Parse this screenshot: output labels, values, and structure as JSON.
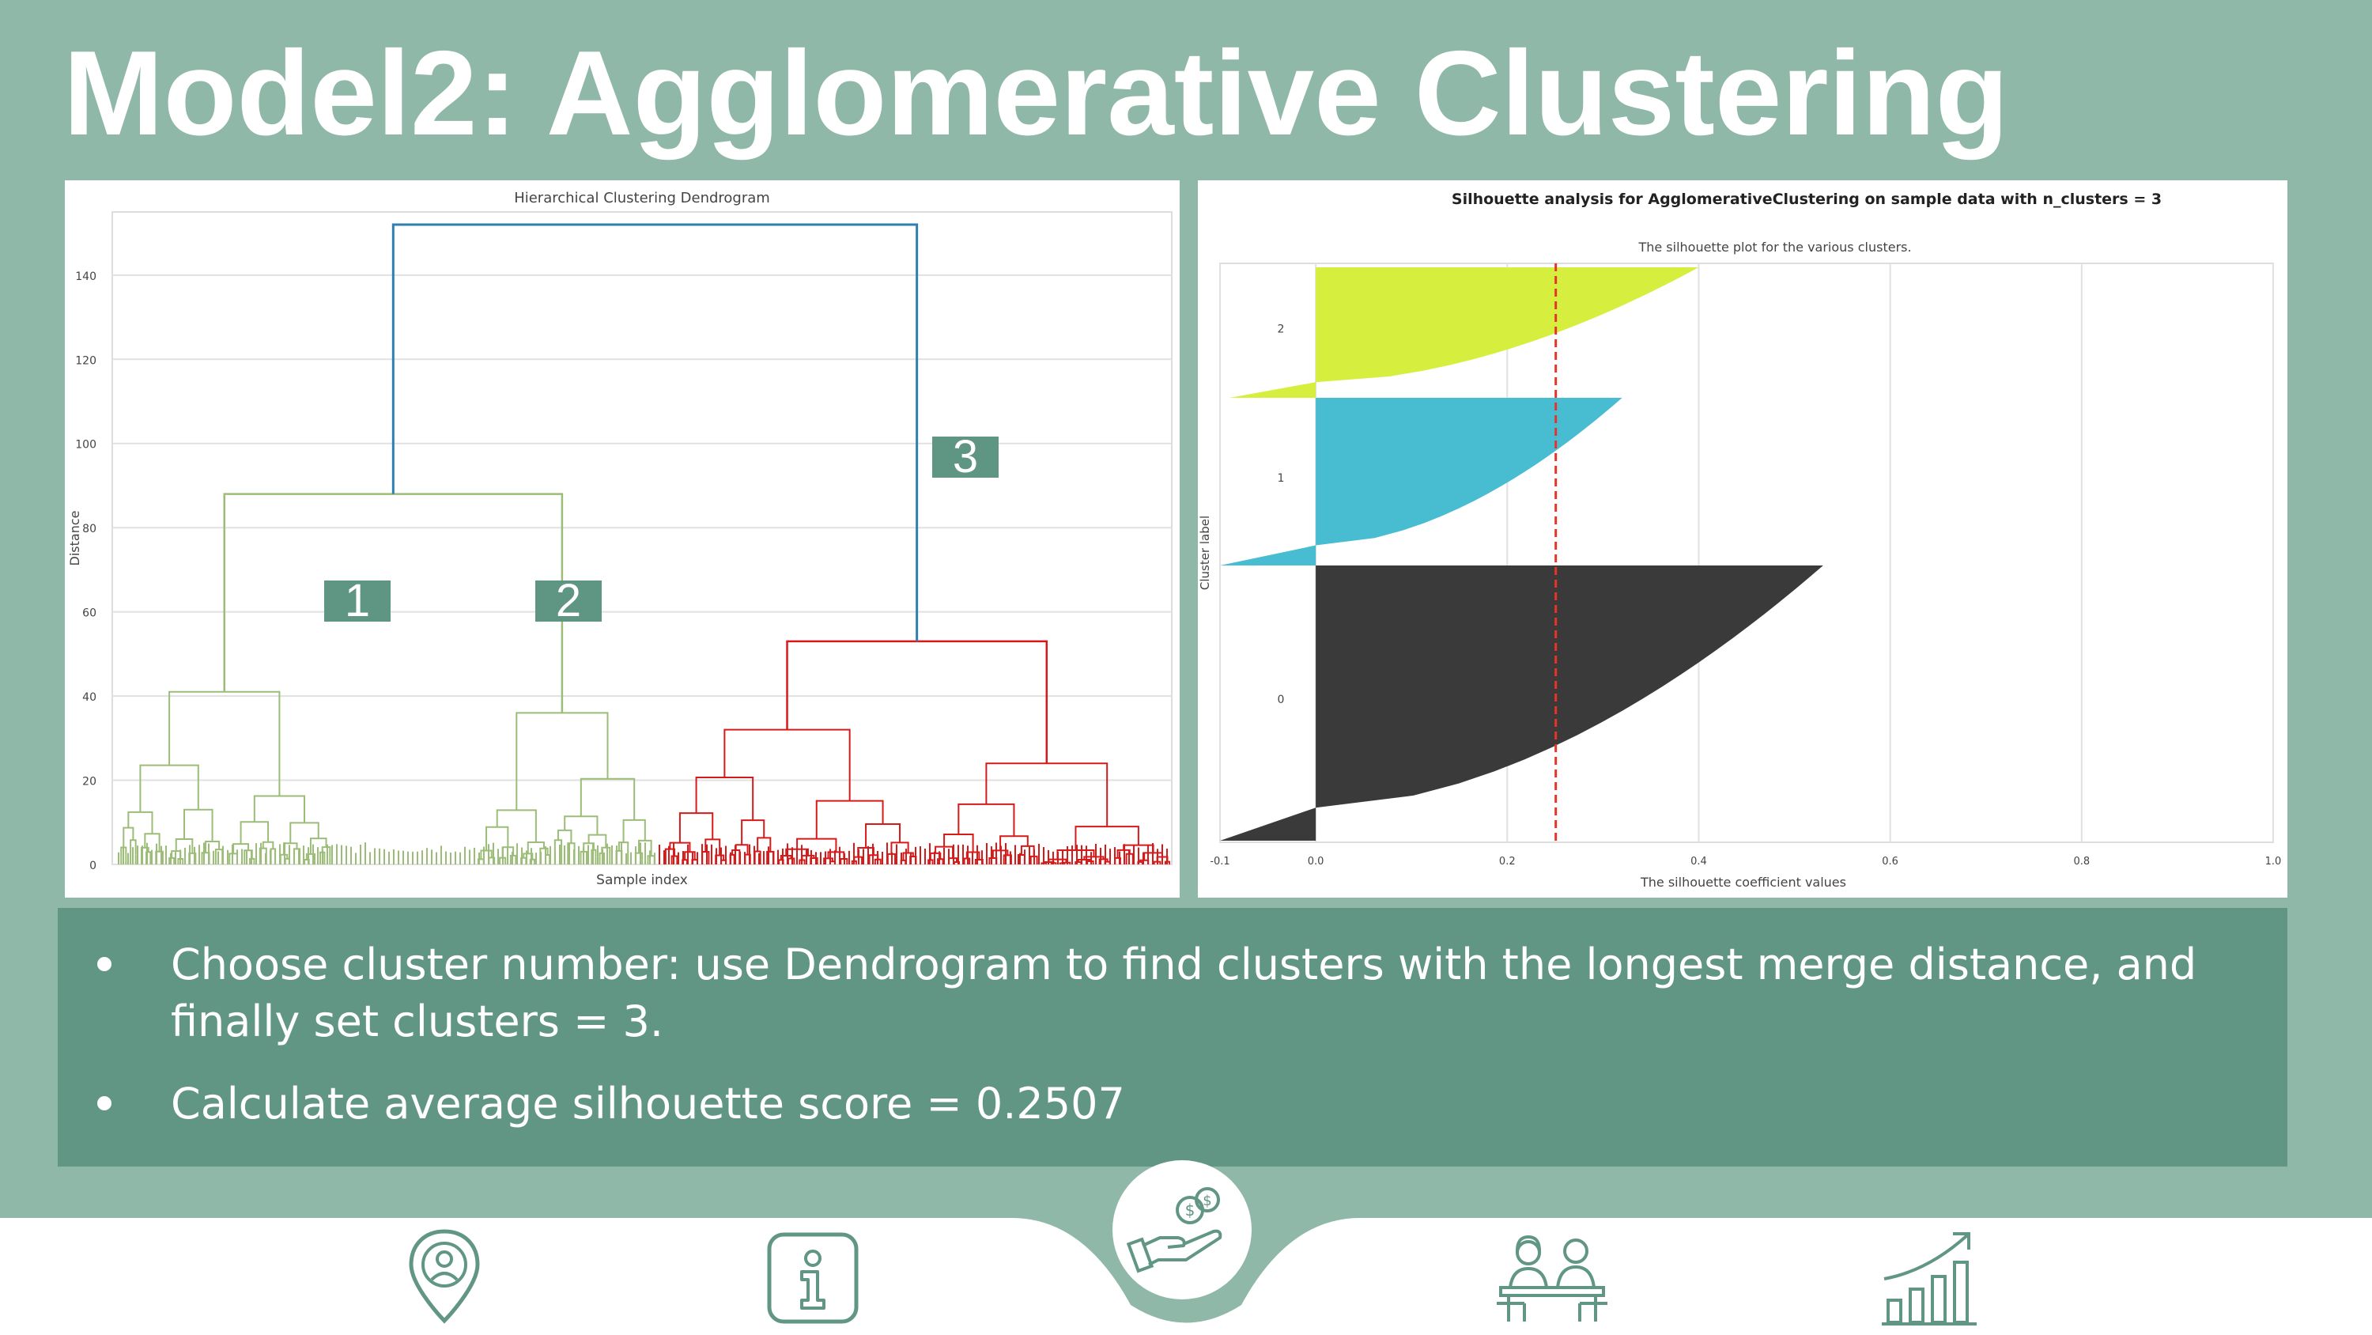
{
  "title": "Model2: Agglomerative Clustering",
  "colors": {
    "background": "#8fb8a8",
    "bullet_box": "#629684",
    "marker": "#5f9583",
    "cluster_green": "#9bbd78",
    "cluster_red": "#d61a1a",
    "cluster_blue": "#2f7fb0",
    "sil_yellow": "#d6ef3f",
    "sil_cyan": "#48bcd0",
    "sil_dark": "#3a3a3a",
    "icon": "#629684"
  },
  "dendrogram": {
    "markers": [
      "1",
      "2",
      "3"
    ]
  },
  "chart_data": [
    {
      "type": "dendrogram",
      "title": "Hierarchical Clustering Dendrogram",
      "xlabel": "Sample index",
      "ylabel": "Distance",
      "ylim": [
        0,
        155
      ],
      "yticks": [
        0,
        20,
        40,
        60,
        80,
        100,
        120,
        140
      ],
      "grid": true,
      "merges": [
        {
          "cluster": "green-left",
          "height": 41
        },
        {
          "cluster": "green-right",
          "height": 36
        },
        {
          "cluster": "green",
          "height": 88
        },
        {
          "cluster": "red-left",
          "height": 32
        },
        {
          "cluster": "red-right",
          "height": 24
        },
        {
          "cluster": "red",
          "height": 53
        },
        {
          "cluster": "root",
          "height": 152
        }
      ]
    },
    {
      "type": "area",
      "title": "Silhouette analysis for AgglomerativeClustering on sample data with n_clusters = 3",
      "subtitle": "The silhouette plot for the various clusters.",
      "xlabel": "The silhouette coefficient values",
      "ylabel": "Cluster label",
      "xlim": [
        -0.1,
        1.0
      ],
      "xticks": [
        "-0.1",
        "0.0",
        "0.2",
        "0.4",
        "0.6",
        "0.8",
        "1.0"
      ],
      "grid": true,
      "average_silhouette": 0.2507,
      "series": [
        {
          "name": "2",
          "max": 0.4,
          "min": -0.09
        },
        {
          "name": "1",
          "max": 0.32,
          "min": -0.1
        },
        {
          "name": "0",
          "max": 0.53,
          "min": -0.1
        }
      ]
    }
  ],
  "bullets": [
    "Choose cluster number: use Dendrogram to find clusters with the longest merge distance, and finally set clusters = 3.",
    "Calculate average silhouette score = 0.2507"
  ],
  "nav": [
    {
      "icon": "location-person-icon"
    },
    {
      "icon": "info-icon"
    },
    {
      "icon": "money-hand-icon"
    },
    {
      "icon": "meeting-people-icon"
    },
    {
      "icon": "growth-chart-icon"
    }
  ]
}
